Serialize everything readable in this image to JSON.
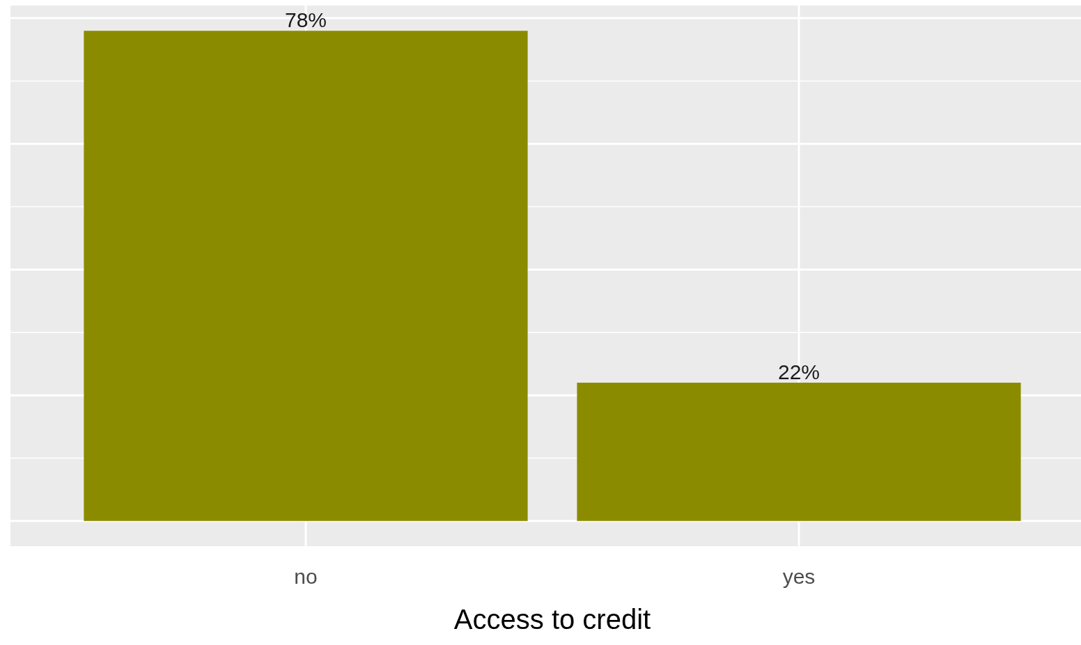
{
  "chart_data": {
    "type": "bar",
    "xlabel": "Access to credit",
    "categories": [
      "no",
      "yes"
    ],
    "values": [
      78,
      22
    ],
    "color": "#8b8b00",
    "value_labels": [
      "78%",
      "22%"
    ],
    "ylim": [
      -4,
      82
    ],
    "yticks": [
      {
        "value": 0,
        "label": null
      },
      {
        "value": 10,
        "label": null
      },
      {
        "value": 20,
        "label": null
      },
      {
        "value": 30,
        "label": null
      },
      {
        "value": 40,
        "label": null
      },
      {
        "value": 50,
        "label": null
      },
      {
        "value": 60,
        "label": null
      },
      {
        "value": 70,
        "label": null
      },
      {
        "value": 80,
        "label": null
      }
    ],
    "grid": true,
    "tick_labels": "x",
    "legend": false
  }
}
